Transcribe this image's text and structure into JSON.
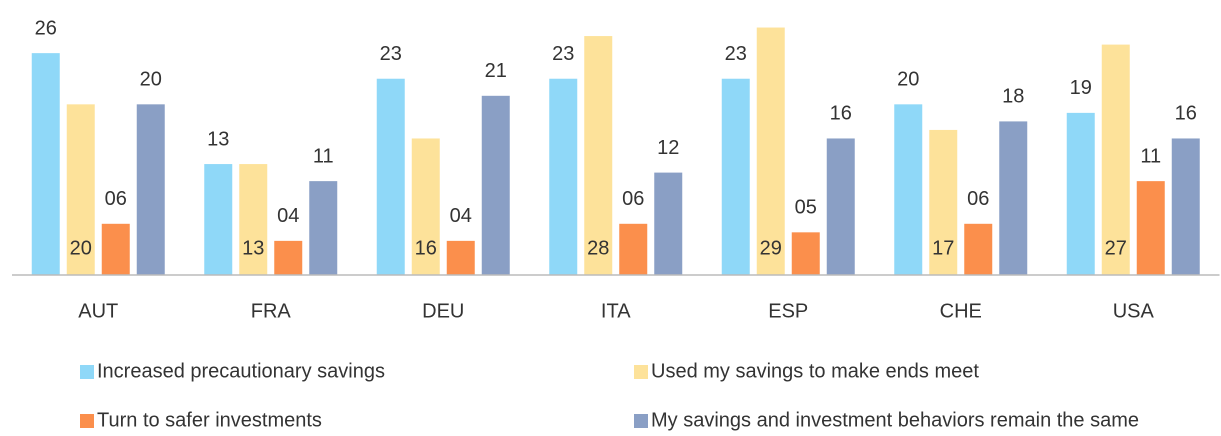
{
  "chart_data": {
    "type": "bar",
    "categories": [
      "AUT",
      "FRA",
      "DEU",
      "ITA",
      "ESP",
      "CHE",
      "USA"
    ],
    "series": [
      {
        "name": "Increased precautionary savings",
        "color": "#8fd8f8",
        "values": [
          26,
          13,
          23,
          23,
          23,
          20,
          19
        ]
      },
      {
        "name": "Used my savings to make ends meet",
        "color": "#fde29a",
        "values": [
          20,
          13,
          16,
          28,
          29,
          17,
          27
        ]
      },
      {
        "name": "Turn to safer investments",
        "color": "#fb8f4c",
        "values": [
          6,
          4,
          4,
          6,
          5,
          6,
          11
        ],
        "value_labels": [
          "06",
          "04",
          "04",
          "06",
          "05",
          "06",
          "11"
        ]
      },
      {
        "name": "My savings and investment behaviors remain the same",
        "color": "#8a9fc5",
        "values": [
          20,
          11,
          21,
          12,
          16,
          18,
          16
        ]
      }
    ],
    "ylim": [
      0,
      30
    ],
    "legend": "bottom"
  }
}
